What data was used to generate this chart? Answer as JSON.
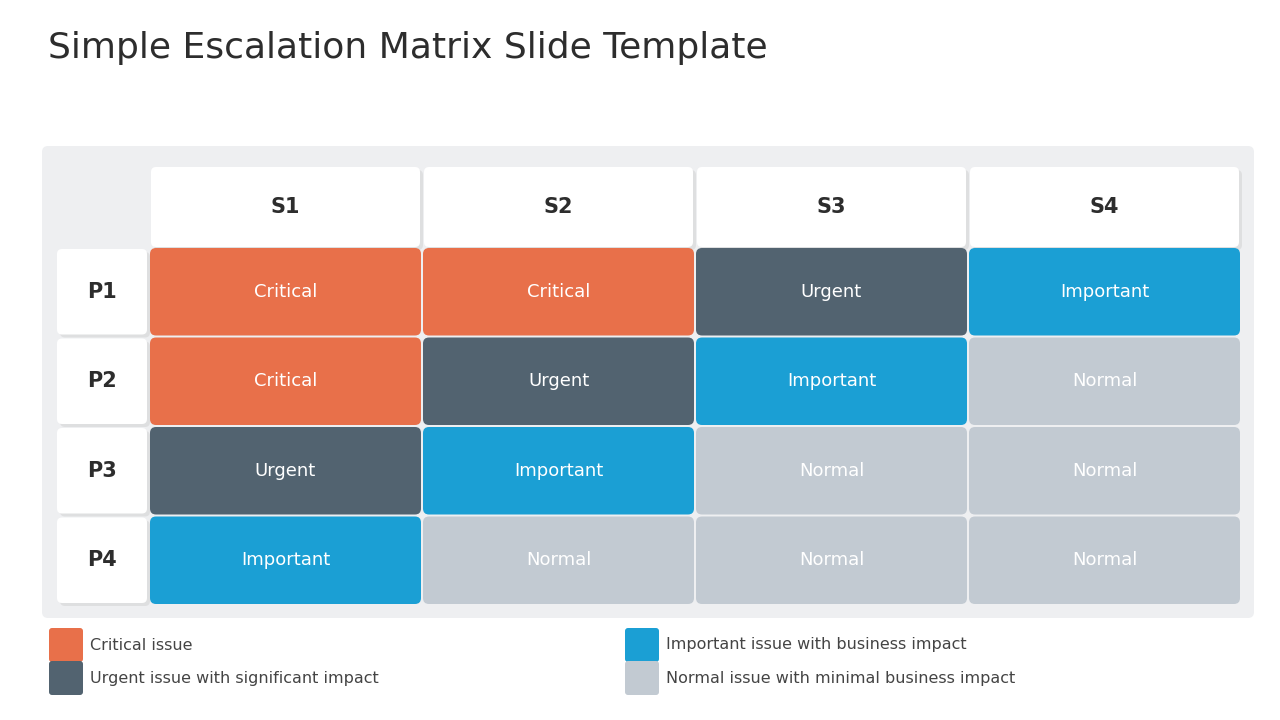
{
  "title": "Simple Escalation Matrix Slide Template",
  "title_fontsize": 26,
  "title_color": "#2d2d2d",
  "background_color": "#ffffff",
  "panel_bg": "#eeeff1",
  "col_headers": [
    "S1",
    "S2",
    "S3",
    "S4"
  ],
  "row_headers": [
    "P1",
    "P2",
    "P3",
    "P4"
  ],
  "matrix": [
    [
      "Critical",
      "Critical",
      "Urgent",
      "Important"
    ],
    [
      "Critical",
      "Urgent",
      "Important",
      "Normal"
    ],
    [
      "Urgent",
      "Important",
      "Normal",
      "Normal"
    ],
    [
      "Important",
      "Normal",
      "Normal",
      "Normal"
    ]
  ],
  "colors": {
    "Critical": "#e8704a",
    "Urgent": "#526370",
    "Important": "#1b9fd4",
    "Normal": "#c2cad2"
  },
  "text_color_light": "#ffffff",
  "cell_text_fontsize": 13,
  "header_fontsize": 15,
  "legend_items": [
    {
      "label": "Critical issue",
      "color": "#e8704a"
    },
    {
      "label": "Urgent issue with significant impact",
      "color": "#526370"
    },
    {
      "label": "Important issue with business impact",
      "color": "#1b9fd4"
    },
    {
      "label": "Normal issue with minimal business impact",
      "color": "#c2cad2"
    }
  ]
}
